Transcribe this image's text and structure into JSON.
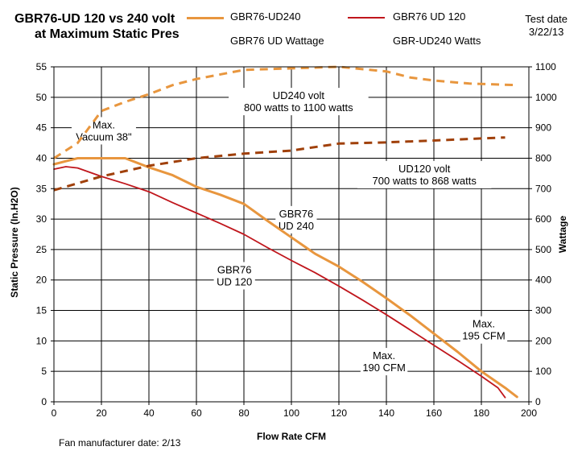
{
  "chart_data": {
    "type": "line",
    "title": "GBR76-UD 120 vs 240 volt",
    "subtitle": "at Maximum Static Pres",
    "xlabel": "Flow Rate  CFM",
    "ylabel": "Static Pressure (In.H2O)",
    "y2label": "Wattage",
    "xlim": [
      0,
      200
    ],
    "ylim": [
      0,
      55
    ],
    "y2lim": [
      0,
      1100
    ],
    "x_ticks": [
      0,
      20,
      40,
      60,
      80,
      100,
      120,
      140,
      160,
      180,
      200
    ],
    "y_ticks": [
      0,
      5,
      10,
      15,
      20,
      25,
      30,
      35,
      40,
      45,
      50,
      55
    ],
    "y2_ticks": [
      0,
      100,
      200,
      300,
      400,
      500,
      600,
      700,
      800,
      900,
      1000,
      1100
    ],
    "grid": true,
    "legend_position": "top",
    "test_date_label": "Test date",
    "test_date_value": "3/22/13",
    "footnote": "Fan manufacturer date: 2/13",
    "series": [
      {
        "name": "GBR76-UD240",
        "axis": "left",
        "style": "solid",
        "color": "#e8963e",
        "points": [
          [
            0,
            39
          ],
          [
            5,
            39.5
          ],
          [
            10,
            40
          ],
          [
            20,
            40
          ],
          [
            30,
            40
          ],
          [
            40,
            38.5
          ],
          [
            50,
            37.2
          ],
          [
            60,
            35.3
          ],
          [
            70,
            34
          ],
          [
            80,
            32.5
          ],
          [
            90,
            29.7
          ],
          [
            100,
            27
          ],
          [
            110,
            24.3
          ],
          [
            120,
            22.2
          ],
          [
            130,
            19.7
          ],
          [
            140,
            17
          ],
          [
            150,
            14.2
          ],
          [
            160,
            11.2
          ],
          [
            170,
            8.2
          ],
          [
            180,
            5
          ],
          [
            190,
            2.3
          ],
          [
            195,
            0.8
          ]
        ]
      },
      {
        "name": "GBR76 UD 120",
        "axis": "left",
        "style": "solid",
        "color": "#c0161c",
        "points": [
          [
            0,
            38.2
          ],
          [
            5,
            38.6
          ],
          [
            10,
            38.4
          ],
          [
            20,
            37
          ],
          [
            30,
            35.8
          ],
          [
            40,
            34.5
          ],
          [
            50,
            32.7
          ],
          [
            60,
            31
          ],
          [
            70,
            29.3
          ],
          [
            80,
            27.5
          ],
          [
            90,
            25.3
          ],
          [
            100,
            23.2
          ],
          [
            110,
            21.2
          ],
          [
            120,
            19
          ],
          [
            130,
            16.7
          ],
          [
            140,
            14.3
          ],
          [
            150,
            11.8
          ],
          [
            160,
            9.3
          ],
          [
            170,
            6.8
          ],
          [
            180,
            4.2
          ],
          [
            187,
            2.3
          ],
          [
            190,
            0.7
          ]
        ]
      },
      {
        "name": "GBR76 UD Wattage",
        "axis": "right",
        "style": "dashed",
        "color": "#a0400a",
        "points": [
          [
            0,
            695
          ],
          [
            20,
            740
          ],
          [
            40,
            775
          ],
          [
            60,
            800
          ],
          [
            80,
            815
          ],
          [
            100,
            825
          ],
          [
            120,
            848
          ],
          [
            140,
            852
          ],
          [
            160,
            858
          ],
          [
            180,
            865
          ],
          [
            190,
            868
          ]
        ]
      },
      {
        "name": "GBR-UD240  Watts",
        "axis": "right",
        "style": "dashed",
        "color": "#e8963e",
        "points": [
          [
            0,
            800
          ],
          [
            10,
            850
          ],
          [
            20,
            955
          ],
          [
            30,
            985
          ],
          [
            40,
            1010
          ],
          [
            50,
            1040
          ],
          [
            60,
            1060
          ],
          [
            80,
            1090
          ],
          [
            100,
            1095
          ],
          [
            120,
            1100
          ],
          [
            140,
            1085
          ],
          [
            150,
            1065
          ],
          [
            160,
            1055
          ],
          [
            175,
            1045
          ],
          [
            195,
            1040
          ]
        ]
      }
    ],
    "annotations": [
      {
        "lines": [
          "Max.",
          "Vacuum 38\""
        ],
        "x": 21,
        "y": 44.5
      },
      {
        "lines": [
          "UD240 volt",
          "800 watts to 1100 watts"
        ],
        "x": 103,
        "y": 49.3
      },
      {
        "lines": [
          "UD120 volt",
          "700 watts to 868 watts"
        ],
        "x": 156,
        "y": 37.3
      },
      {
        "lines": [
          "GBR76",
          "UD 240"
        ],
        "x": 102,
        "y": 29.9
      },
      {
        "lines": [
          "GBR76",
          "UD 120"
        ],
        "x": 76,
        "y": 20.7
      },
      {
        "lines": [
          "Max.",
          "190 CFM"
        ],
        "x": 139,
        "y": 6.6
      },
      {
        "lines": [
          "Max.",
          "195 CFM"
        ],
        "x": 181,
        "y": 11.8
      }
    ]
  }
}
